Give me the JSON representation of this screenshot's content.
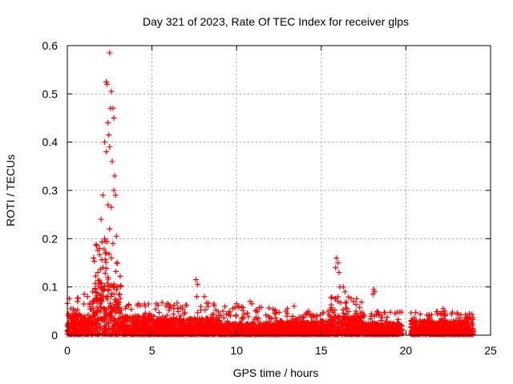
{
  "chart_data": {
    "type": "scatter",
    "title": "Day 321 of 2023, Rate Of TEC Index for receiver glps",
    "xlabel": "GPS time / hours",
    "ylabel": "ROTI / TECUs",
    "xlim": [
      0,
      25
    ],
    "ylim": [
      0,
      0.6
    ],
    "x_ticks": [
      0,
      5,
      10,
      15,
      20,
      25
    ],
    "y_ticks": [
      0,
      0.1,
      0.2,
      0.3,
      0.4,
      0.5,
      0.6
    ],
    "x_tick_labels": [
      "0",
      "5",
      "10",
      "15",
      "20",
      "25"
    ],
    "y_tick_labels": [
      "0",
      "0.1",
      "0.2",
      "0.3",
      "0.4",
      "0.5",
      "0.6"
    ],
    "grid": true,
    "marker": "+",
    "series": [
      {
        "name": "ROTI",
        "color": "#ff0000",
        "x": [
          2.5,
          2.3,
          2.35,
          2.6,
          2.55,
          2.7,
          2.75,
          2.4,
          2.45,
          2.2,
          2.5,
          2.3,
          2.65,
          2.8,
          2.75,
          2.85,
          2.1,
          2.4,
          2.6,
          2.0,
          2.5,
          2.9,
          2.2,
          2.7,
          1.9,
          2.3,
          2.6,
          2.95,
          2.1,
          1.8,
          2.4,
          1.5,
          2.75,
          2.0,
          1.2,
          1.0,
          0.6,
          3.5,
          4.2,
          4.6,
          5.9,
          6.1,
          7.6,
          7.7,
          7.65,
          8.1,
          10.0,
          10.1,
          10.8,
          10.9,
          12.9,
          13.0,
          13.4,
          15.9,
          16.0,
          15.85,
          16.05,
          16.1,
          16.3,
          16.4,
          16.9,
          18.1,
          18.15,
          18.05,
          22.2,
          22.3
        ],
        "y": [
          0.585,
          0.525,
          0.52,
          0.505,
          0.47,
          0.47,
          0.45,
          0.44,
          0.415,
          0.4,
          0.39,
          0.38,
          0.36,
          0.33,
          0.3,
          0.29,
          0.29,
          0.27,
          0.265,
          0.24,
          0.22,
          0.205,
          0.2,
          0.19,
          0.18,
          0.17,
          0.16,
          0.15,
          0.14,
          0.13,
          0.12,
          0.09,
          0.1,
          0.085,
          0.08,
          0.085,
          0.07,
          0.06,
          0.065,
          0.06,
          0.065,
          0.06,
          0.115,
          0.105,
          0.08,
          0.08,
          0.065,
          0.06,
          0.07,
          0.065,
          0.05,
          0.055,
          0.06,
          0.16,
          0.15,
          0.14,
          0.13,
          0.1,
          0.1,
          0.09,
          0.07,
          0.095,
          0.09,
          0.085,
          0.055,
          0.05
        ]
      }
    ],
    "dense_band": {
      "description_segments": [
        {
          "x_start": 0.0,
          "x_end": 1.5,
          "y_min": 0.0,
          "y_typical": 0.045,
          "y_peak": 0.08
        },
        {
          "x_start": 1.5,
          "x_end": 3.2,
          "y_min": 0.0,
          "y_typical": 0.11,
          "y_peak": 0.2
        },
        {
          "x_start": 3.2,
          "x_end": 5.0,
          "y_min": 0.0,
          "y_typical": 0.04,
          "y_peak": 0.065
        },
        {
          "x_start": 5.0,
          "x_end": 9.0,
          "y_min": 0.0,
          "y_typical": 0.035,
          "y_peak": 0.07
        },
        {
          "x_start": 9.0,
          "x_end": 12.5,
          "y_min": 0.0,
          "y_typical": 0.025,
          "y_peak": 0.06
        },
        {
          "x_start": 12.5,
          "x_end": 15.5,
          "y_min": 0.0,
          "y_typical": 0.03,
          "y_peak": 0.05
        },
        {
          "x_start": 15.5,
          "x_end": 17.5,
          "y_min": 0.0,
          "y_typical": 0.04,
          "y_peak": 0.08
        },
        {
          "x_start": 17.5,
          "x_end": 19.8,
          "y_min": 0.0,
          "y_typical": 0.025,
          "y_peak": 0.05
        },
        {
          "x_start": 20.3,
          "x_end": 24.0,
          "y_min": 0.0,
          "y_typical": 0.03,
          "y_peak": 0.05
        }
      ]
    }
  }
}
